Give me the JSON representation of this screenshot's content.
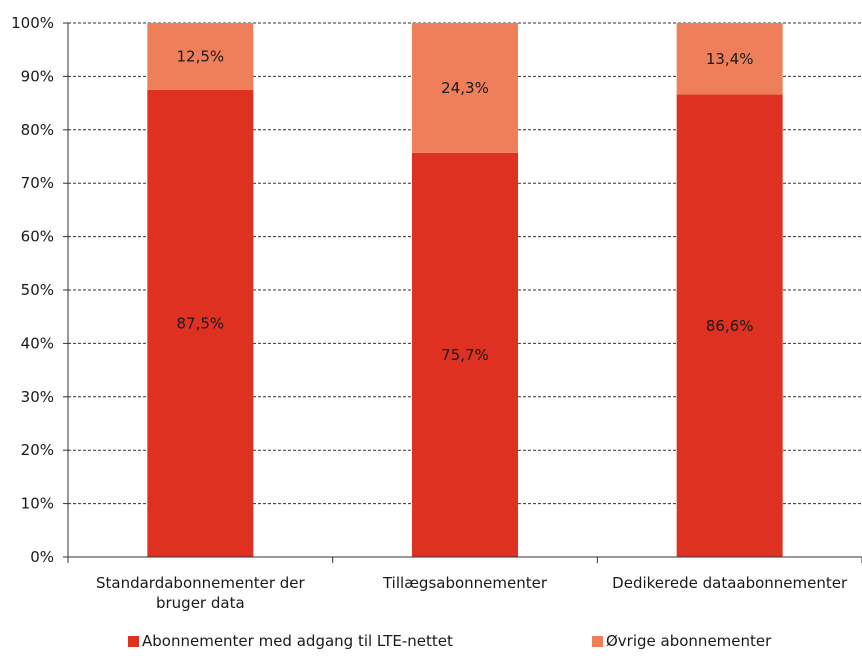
{
  "chart_data": {
    "type": "bar",
    "stacked": true,
    "categories": [
      [
        "Standardabonnementer der",
        "bruger data"
      ],
      [
        "Tillægsabonnementer"
      ],
      [
        "Dedikerede dataabonnementer"
      ]
    ],
    "series": [
      {
        "name": "Abonnementer med adgang til LTE-nettet",
        "color": "#de3121",
        "values": [
          87.5,
          75.7,
          86.6
        ],
        "labels": [
          "87,5%",
          "75,7%",
          "86,6%"
        ]
      },
      {
        "name": "Øvrige abonnementer",
        "color": "#ee7f5a",
        "values": [
          12.5,
          24.3,
          13.4
        ],
        "labels": [
          "12,5%",
          "24,3%",
          "13,4%"
        ]
      }
    ],
    "ylim": [
      0,
      100
    ],
    "yticks": [
      "0%",
      "10%",
      "20%",
      "30%",
      "40%",
      "50%",
      "60%",
      "70%",
      "80%",
      "90%",
      "100%"
    ],
    "grid": true,
    "legend_position": "bottom"
  }
}
